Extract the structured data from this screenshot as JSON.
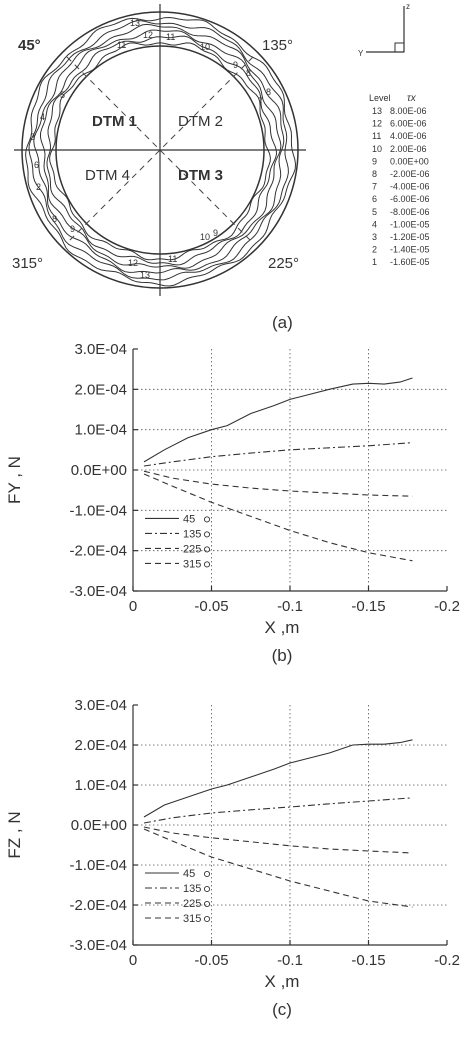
{
  "panel_a": {
    "regions": [
      "DTM 1",
      "DTM 2",
      "DTM 3",
      "DTM 4"
    ],
    "angles": [
      "45°",
      "135°",
      "225°",
      "315°"
    ],
    "axes_glyph": {
      "z": "z",
      "y": "Y"
    },
    "table_header": {
      "level": "Level",
      "tau": "τx"
    },
    "table": [
      [
        "13",
        "8.00E-06"
      ],
      [
        "12",
        "6.00E-06"
      ],
      [
        "11",
        "4.00E-06"
      ],
      [
        "10",
        "2.00E-06"
      ],
      [
        "9",
        "0.00E+00"
      ],
      [
        "8",
        "-2.00E-06"
      ],
      [
        "7",
        "-4.00E-06"
      ],
      [
        "6",
        "-6.00E-06"
      ],
      [
        "5",
        "-8.00E-06"
      ],
      [
        "4",
        "-1.00E-05"
      ],
      [
        "3",
        "-1.20E-05"
      ],
      [
        "2",
        "-1.40E-05"
      ],
      [
        "1",
        "-1.60E-05"
      ]
    ],
    "contour_labels": [
      "13",
      "12",
      "11",
      "10",
      "9",
      "8",
      "7",
      "6",
      "5",
      "4",
      "3",
      "2",
      "1"
    ],
    "caption": "(a)"
  },
  "chart_data": [
    {
      "type": "line",
      "caption": "(b)",
      "xlabel": "X ,m",
      "ylabel": "FY , N",
      "xlim": [
        0,
        -0.2
      ],
      "ylim": [
        -0.0003,
        0.0003
      ],
      "xticks": [
        "0",
        "-0.05",
        "-0.1",
        "-0.15",
        "-0.2"
      ],
      "yticks": [
        "3.0E-04",
        "2.0E-04",
        "1.0E-04",
        "0.0E+00",
        "-1.0E-04",
        "-2.0E-04",
        "-3.0E-04"
      ],
      "grid": "dotted",
      "legend": "bottom-left",
      "series": [
        {
          "name": "45",
          "style": "solid",
          "x": [
            -0.007,
            -0.02,
            -0.035,
            -0.05,
            -0.06,
            -0.075,
            -0.09,
            -0.1,
            -0.11,
            -0.125,
            -0.14,
            -0.15,
            -0.16,
            -0.17,
            -0.178
          ],
          "y": [
            2e-05,
            5e-05,
            8e-05,
            0.0001,
            0.00011,
            0.00014,
            0.00016,
            0.000175,
            0.000185,
            0.0002,
            0.000213,
            0.000215,
            0.000213,
            0.000218,
            0.000228
          ]
        },
        {
          "name": "135",
          "style": "dashdot",
          "x": [
            -0.007,
            -0.025,
            -0.05,
            -0.075,
            -0.1,
            -0.125,
            -0.15,
            -0.178
          ],
          "y": [
            1e-05,
            2e-05,
            3.3e-05,
            4.2e-05,
            5e-05,
            5.5e-05,
            6e-05,
            6.8e-05
          ]
        },
        {
          "name": "225",
          "style": "dashed",
          "x": [
            -0.007,
            -0.025,
            -0.05,
            -0.075,
            -0.1,
            -0.125,
            -0.15,
            -0.178
          ],
          "y": [
            -3e-06,
            -2e-05,
            -3.5e-05,
            -4.5e-05,
            -5.2e-05,
            -5.7e-05,
            -6.2e-05,
            -6.5e-05
          ]
        },
        {
          "name": "315",
          "style": "dashed",
          "x": [
            -0.007,
            -0.025,
            -0.05,
            -0.075,
            -0.1,
            -0.125,
            -0.15,
            -0.178
          ],
          "y": [
            -1e-05,
            -4e-05,
            -8e-05,
            -0.000115,
            -0.00015,
            -0.00018,
            -0.000205,
            -0.000225
          ]
        }
      ]
    },
    {
      "type": "line",
      "caption": "(c)",
      "xlabel": "X ,m",
      "ylabel": "FZ , N",
      "xlim": [
        0,
        -0.2
      ],
      "ylim": [
        -0.0003,
        0.0003
      ],
      "xticks": [
        "0",
        "-0.05",
        "-0.1",
        "-0.15",
        "-0.2"
      ],
      "yticks": [
        "3.0E-04",
        "2.0E-04",
        "1.0E-04",
        "0.0E+00",
        "-1.0E-04",
        "-2.0E-04",
        "-3.0E-04"
      ],
      "grid": "dotted",
      "legend": "bottom-left",
      "series": [
        {
          "name": "45",
          "style": "solid",
          "x": [
            -0.007,
            -0.02,
            -0.035,
            -0.05,
            -0.06,
            -0.075,
            -0.09,
            -0.1,
            -0.11,
            -0.125,
            -0.14,
            -0.15,
            -0.16,
            -0.17,
            -0.178
          ],
          "y": [
            2e-05,
            5e-05,
            7e-05,
            9e-05,
            0.0001,
            0.00012,
            0.00014,
            0.000155,
            0.000165,
            0.00018,
            0.0002,
            0.000202,
            0.000202,
            0.000206,
            0.000213
          ]
        },
        {
          "name": "135",
          "style": "dashdot",
          "x": [
            -0.007,
            -0.025,
            -0.05,
            -0.075,
            -0.1,
            -0.125,
            -0.15,
            -0.178
          ],
          "y": [
            5e-06,
            1.8e-05,
            3e-05,
            3.8e-05,
            4.5e-05,
            5.3e-05,
            6e-05,
            6.8e-05
          ]
        },
        {
          "name": "225",
          "style": "dashed",
          "x": [
            -0.007,
            -0.025,
            -0.05,
            -0.075,
            -0.1,
            -0.125,
            -0.15,
            -0.178
          ],
          "y": [
            -5e-06,
            -2e-05,
            -3.2e-05,
            -4.2e-05,
            -5.2e-05,
            -6e-05,
            -6.5e-05,
            -7e-05
          ]
        },
        {
          "name": "315",
          "style": "dashed",
          "x": [
            -0.007,
            -0.025,
            -0.05,
            -0.075,
            -0.1,
            -0.125,
            -0.15,
            -0.178
          ],
          "y": [
            -1e-05,
            -4e-05,
            -8e-05,
            -0.00011,
            -0.00014,
            -0.000165,
            -0.00019,
            -0.000205
          ]
        }
      ]
    }
  ]
}
